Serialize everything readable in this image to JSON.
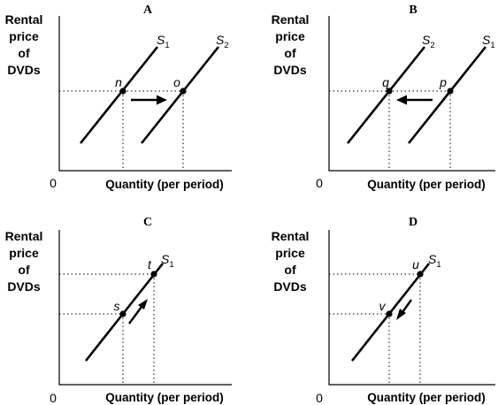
{
  "panels": [
    {
      "id": "A",
      "title": "A",
      "ylabel": [
        "Rental",
        "price",
        "of",
        "DVDs"
      ],
      "origin": "0",
      "xlabel": "Quantity (per period)",
      "curves": [
        {
          "name": "S",
          "sub": "1"
        },
        {
          "name": "S",
          "sub": "2"
        }
      ],
      "points": [
        "n",
        "o"
      ],
      "arrow": "right"
    },
    {
      "id": "B",
      "title": "B",
      "ylabel": [
        "Rental",
        "price",
        "of",
        "DVDs"
      ],
      "origin": "0",
      "xlabel": "Quantity (per period)",
      "curves": [
        {
          "name": "S",
          "sub": "2"
        },
        {
          "name": "S",
          "sub": "1"
        }
      ],
      "points": [
        "q",
        "p"
      ],
      "arrow": "left"
    },
    {
      "id": "C",
      "title": "C",
      "ylabel": [
        "Rental",
        "price",
        "of",
        "DVDs"
      ],
      "origin": "0",
      "xlabel": "Quantity (per period)",
      "curves": [
        {
          "name": "S",
          "sub": "1"
        }
      ],
      "points": [
        "s",
        "t"
      ],
      "arrow": "up-along-curve"
    },
    {
      "id": "D",
      "title": "D",
      "ylabel": [
        "Rental",
        "price",
        "of",
        "DVDs"
      ],
      "origin": "0",
      "xlabel": "Quantity (per period)",
      "curves": [
        {
          "name": "S",
          "sub": "1"
        }
      ],
      "points": [
        "v",
        "u"
      ],
      "arrow": "down-along-curve"
    }
  ]
}
